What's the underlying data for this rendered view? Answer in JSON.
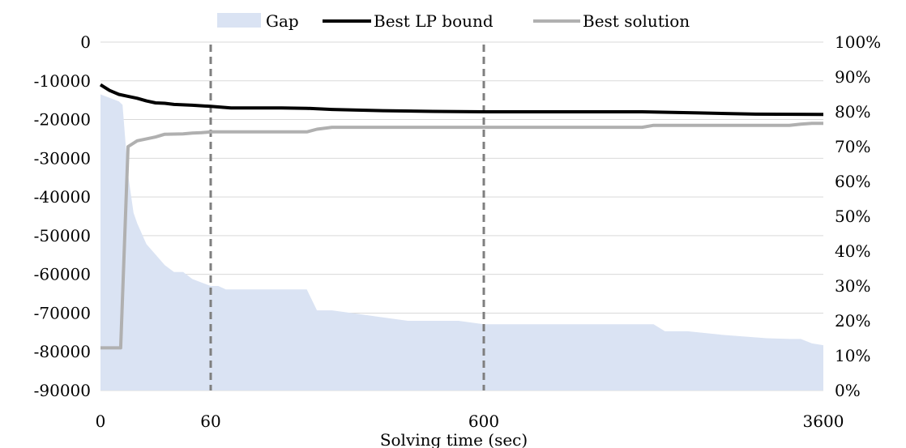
{
  "chart_data": {
    "type": "line",
    "title": "",
    "xlabel": "Solving time (sec)",
    "x_ticks": [
      0,
      60,
      600,
      3600
    ],
    "x_breakpoints": [
      0,
      60,
      600,
      3600
    ],
    "x_grid_at": [
      60,
      600
    ],
    "ylim_left": [
      -90000,
      0
    ],
    "y_ticks_left": [
      0,
      -10000,
      -20000,
      -30000,
      -40000,
      -50000,
      -60000,
      -70000,
      -80000,
      -90000
    ],
    "ylim_right": [
      0,
      100
    ],
    "y_ticks_right": [
      "100%",
      "90%",
      "80%",
      "70%",
      "60%",
      "50%",
      "40%",
      "30%",
      "20%",
      "10%",
      "0%"
    ],
    "grid": "horizontal",
    "legend_position": "top",
    "legend": [
      "Gap",
      "Best LP bound",
      "Best solution"
    ],
    "colors": {
      "gap": "#dae3f3",
      "lp_bound": "#000000",
      "best_solution": "#b0b0b0",
      "gridline": "#d9d9d9",
      "vline": "#7f7f7f"
    },
    "series": [
      {
        "name": "Gap",
        "kind": "area",
        "axis": "right",
        "x": [
          0,
          10,
          12,
          15,
          18,
          20,
          25,
          30,
          35,
          40,
          45,
          50,
          55,
          60,
          75,
          90,
          110,
          150,
          200,
          250,
          270,
          300,
          350,
          400,
          450,
          550,
          600,
          800,
          1000,
          1500,
          2100,
          2200,
          2400,
          2700,
          3100,
          3300,
          3400,
          3500,
          3600
        ],
        "values": [
          85,
          83,
          82,
          62,
          51,
          48,
          42,
          39,
          36,
          34,
          34,
          32,
          31,
          30,
          30,
          29,
          29,
          29,
          29,
          29,
          23,
          23,
          22,
          21,
          20,
          20,
          19,
          19,
          19,
          19,
          19,
          17,
          17,
          16,
          15,
          14.8,
          14.8,
          13.5,
          13
        ]
      },
      {
        "name": "Best LP bound",
        "kind": "line",
        "axis": "left",
        "x": [
          0,
          5,
          10,
          15,
          20,
          25,
          30,
          35,
          40,
          50,
          60,
          80,
          100,
          150,
          200,
          250,
          300,
          400,
          500,
          600,
          1000,
          2000,
          2500,
          3000,
          3600
        ],
        "values": [
          -11000,
          -12500,
          -13500,
          -14000,
          -14500,
          -15200,
          -15700,
          -15800,
          -16100,
          -16300,
          -16600,
          -16800,
          -17000,
          -17000,
          -17000,
          -17100,
          -17400,
          -17700,
          -17900,
          -18000,
          -18000,
          -18000,
          -18300,
          -18600,
          -18700
        ]
      },
      {
        "name": "Best solution",
        "kind": "line",
        "axis": "left",
        "x": [
          0,
          10,
          11,
          15,
          20,
          25,
          30,
          35,
          45,
          50,
          55,
          60,
          100,
          250,
          270,
          300,
          600,
          2000,
          2100,
          3300,
          3400,
          3500,
          3600
        ],
        "values": [
          -79000,
          -79000,
          -79000,
          -27000,
          -25500,
          -25000,
          -24500,
          -23800,
          -23700,
          -23500,
          -23400,
          -23200,
          -23200,
          -23200,
          -22500,
          -22000,
          -22000,
          -22000,
          -21500,
          -21500,
          -21200,
          -21000,
          -21000
        ]
      }
    ]
  }
}
